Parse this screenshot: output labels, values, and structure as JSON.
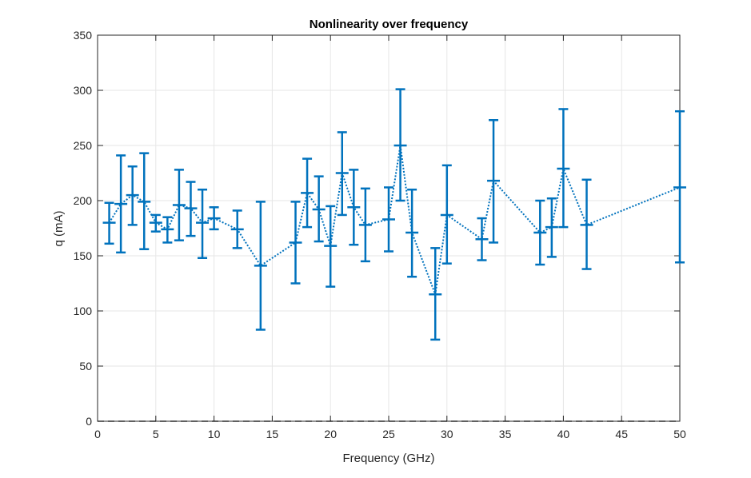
{
  "chart_data": {
    "type": "line",
    "title": "Nonlinearity over frequency",
    "xlabel": "Frequency (GHz)",
    "ylabel": "q (mA)",
    "xlim": [
      0,
      50
    ],
    "ylim": [
      0,
      350
    ],
    "xticks": [
      0,
      5,
      10,
      15,
      20,
      25,
      30,
      35,
      40,
      45,
      50
    ],
    "yticks": [
      0,
      50,
      100,
      150,
      200,
      250,
      300,
      350
    ],
    "grid": true,
    "line_style": "dotted",
    "error_bars": true,
    "color": "#0072BD",
    "reference_line": {
      "y": 0,
      "style": "dashed",
      "color": "#000000"
    },
    "series": [
      {
        "x": [
          1,
          2,
          3,
          4,
          5,
          6,
          7,
          8,
          9,
          10,
          12,
          14,
          17,
          18,
          19,
          20,
          21,
          22,
          23,
          25,
          26,
          27,
          29,
          30,
          33,
          34,
          38,
          39,
          40,
          42,
          50
        ],
        "y": [
          180,
          197,
          205,
          199,
          180,
          174,
          196,
          193,
          180,
          184,
          174,
          141,
          162,
          207,
          192,
          159,
          225,
          194,
          178,
          183,
          250,
          171,
          115,
          187,
          165,
          218,
          171,
          176,
          229,
          178,
          212
        ],
        "lower": [
          161,
          153,
          178,
          156,
          172,
          162,
          164,
          168,
          148,
          174,
          157,
          83,
          125,
          176,
          163,
          122,
          187,
          160,
          145,
          154,
          200,
          131,
          74,
          143,
          146,
          162,
          142,
          149,
          176,
          138,
          144
        ],
        "upper": [
          198,
          241,
          231,
          243,
          187,
          185,
          228,
          217,
          210,
          194,
          191,
          199,
          199,
          238,
          222,
          195,
          262,
          228,
          211,
          212,
          301,
          210,
          157,
          232,
          184,
          273,
          200,
          202,
          283,
          219,
          281
        ]
      }
    ]
  }
}
